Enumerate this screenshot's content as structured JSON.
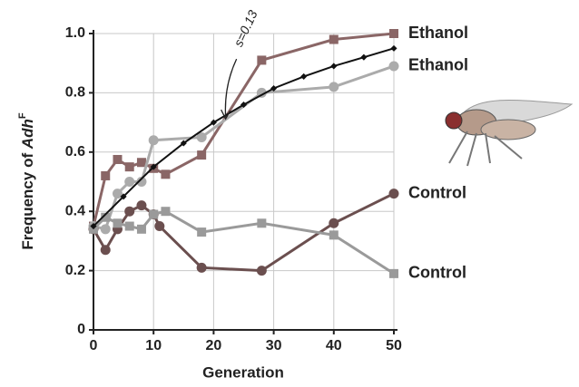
{
  "chart_data": {
    "type": "line",
    "x_label": "Generation",
    "y_label": [
      "Frequency of ",
      "Adh",
      "F"
    ],
    "annotation": "s=0.13",
    "xlim": [
      0,
      50
    ],
    "xticks": [
      0,
      10,
      20,
      30,
      40,
      50
    ],
    "ylim": [
      0,
      1
    ],
    "yticks": [
      0,
      0.2,
      0.4,
      0.6,
      0.8,
      {
        "value": 1,
        "label": "1.0"
      }
    ],
    "grid": true,
    "series": [
      {
        "name": "Ethanol",
        "color": "#8a6666",
        "marker": "square",
        "x": [
          0,
          2,
          4,
          6,
          8,
          10,
          12,
          18,
          28,
          40,
          50
        ],
        "values": [
          0.35,
          0.52,
          0.575,
          0.55,
          0.565,
          0.545,
          0.525,
          0.59,
          0.91,
          0.98,
          1.0
        ]
      },
      {
        "name": "Ethanol",
        "color": "#ababab",
        "marker": "circle",
        "x": [
          0,
          2,
          4,
          6,
          8,
          10,
          18,
          28,
          40,
          50
        ],
        "values": [
          0.35,
          0.34,
          0.46,
          0.5,
          0.5,
          0.64,
          0.65,
          0.8,
          0.82,
          0.89
        ]
      },
      {
        "name": "Control",
        "color": "#6b4f4f",
        "marker": "circle",
        "x": [
          0,
          2,
          4,
          6,
          8,
          10,
          11,
          18,
          28,
          40,
          50
        ],
        "values": [
          0.34,
          0.27,
          0.34,
          0.4,
          0.42,
          0.39,
          0.35,
          0.21,
          0.2,
          0.36,
          0.46
        ]
      },
      {
        "name": "Control",
        "color": "#9a9a9a",
        "marker": "square",
        "x": [
          0,
          2,
          4,
          6,
          8,
          10,
          12,
          18,
          28,
          40,
          50
        ],
        "values": [
          0.34,
          0.38,
          0.36,
          0.35,
          0.34,
          0.39,
          0.4,
          0.33,
          0.36,
          0.32,
          0.19
        ]
      }
    ],
    "model": {
      "color": "#111111",
      "x": [
        0,
        5,
        10,
        15,
        20,
        25,
        30,
        35,
        40,
        45,
        50
      ],
      "values": [
        0.35,
        0.45,
        0.55,
        0.63,
        0.7,
        0.76,
        0.815,
        0.855,
        0.89,
        0.92,
        0.95
      ]
    }
  }
}
